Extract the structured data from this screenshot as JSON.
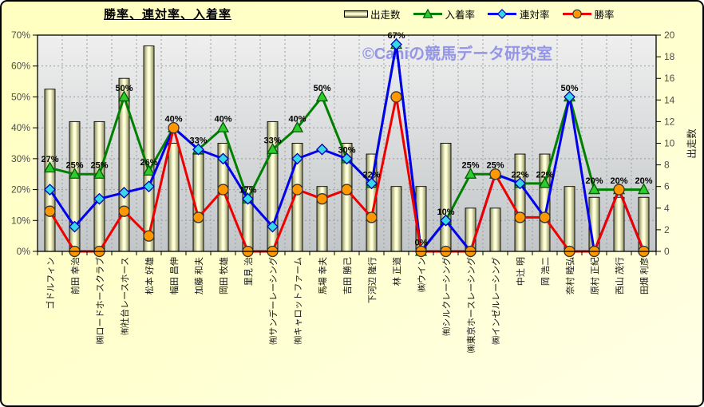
{
  "title": "勝率、連対率、入着率",
  "watermark": "©Caniの競馬データ研究室",
  "chart_data": {
    "type": "bar+line combo",
    "title": "勝率、連対率、入着率",
    "legend_position": "top",
    "grid": true,
    "categories": [
      "ゴドルフィン",
      "前田 幸治",
      "㈱ロードホースクラブ",
      "㈲社台レースホース",
      "松本 好雄",
      "幅田 昌伸",
      "加藤 和夫",
      "岡田 牧雄",
      "里見 治",
      "㈲サンデーレーシング",
      "㈲キャロットファーム",
      "馬場 幸夫",
      "吉田 勝己",
      "下河辺 隆行",
      "林 正道",
      "㈱ウイン",
      "㈲シルクレーシング",
      "㈱東京ホースレーシング",
      "㈱インゼルレーシング",
      "中辻 明",
      "岡 浩二",
      "奈村 睦弘",
      "原村 正紀",
      "西山 茂行",
      "田畑 利彦"
    ],
    "series": [
      {
        "name": "出走数",
        "type": "bar",
        "axis": "right",
        "values": [
          15,
          12,
          12,
          16,
          19,
          10,
          9,
          10,
          6,
          12,
          10,
          6,
          10,
          9,
          6,
          6,
          10,
          4,
          4,
          9,
          9,
          6,
          5,
          5,
          5
        ]
      },
      {
        "name": "入着率",
        "type": "line",
        "marker": "triangle",
        "axis": "left",
        "show_labels": true,
        "values": [
          27,
          25,
          25,
          50,
          26,
          40,
          33,
          40,
          17,
          33,
          40,
          50,
          30,
          22,
          67,
          0,
          10,
          25,
          25,
          22,
          22,
          50,
          20,
          20,
          20
        ]
      },
      {
        "name": "連対率",
        "type": "line",
        "marker": "diamond",
        "axis": "left",
        "show_labels": false,
        "values": [
          20,
          8,
          17,
          19,
          21,
          40,
          33,
          30,
          17,
          8,
          30,
          33,
          30,
          22,
          67,
          0,
          10,
          0,
          25,
          22,
          11,
          50,
          0,
          20,
          0
        ]
      },
      {
        "name": "勝率",
        "type": "line",
        "marker": "circle",
        "axis": "left",
        "show_labels": false,
        "values": [
          13,
          0,
          0,
          13,
          5,
          40,
          11,
          20,
          0,
          0,
          20,
          17,
          20,
          11,
          50,
          0,
          0,
          0,
          25,
          11,
          11,
          0,
          0,
          20,
          0
        ]
      }
    ],
    "left_axis": {
      "min": 0,
      "max": 70,
      "step": 10,
      "suffix": "%"
    },
    "right_axis": {
      "min": 0,
      "max": 20,
      "step": 2,
      "title": "出走数"
    },
    "data_label_suffix": "%"
  },
  "colors": {
    "plot_bg_top": "#efefef",
    "plot_bg_bottom": "#c2c6c8",
    "bar_edge": "#8b8b5c",
    "bar_center": "#ffffd8",
    "place_line": "#008000",
    "place_marker": "#2ecc2e",
    "quinella_line": "#0000ee",
    "quinella_marker": "#36d8e8",
    "win_line": "#ee0000",
    "win_marker": "#ff9800",
    "tick_text": "#4d4d4d",
    "watermark_text": "#9595e6",
    "grid": "#999c9e"
  }
}
